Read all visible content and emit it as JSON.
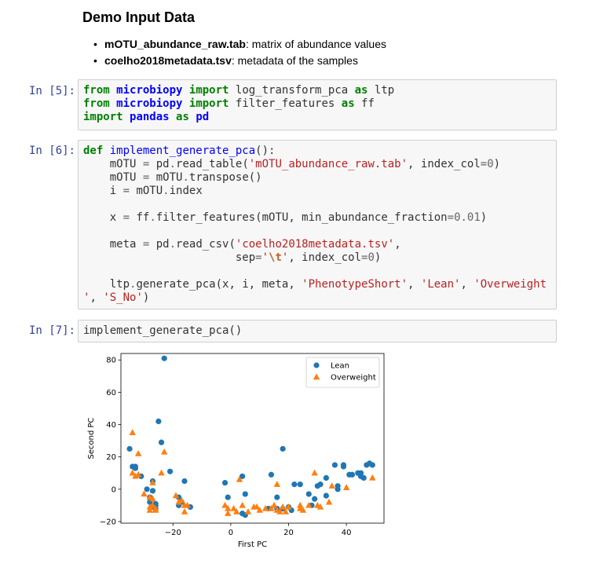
{
  "markdown": {
    "title": "Demo Input Data",
    "items": [
      {
        "name": "mOTU_abundance_raw.tab",
        "desc": ": matrix of abundance values"
      },
      {
        "name": "coelho2018metadata.tsv",
        "desc": ": metadata of the samples"
      }
    ]
  },
  "cells": [
    {
      "prompt": "In [5]:",
      "lines": [
        [
          [
            "kw",
            "from"
          ],
          [
            "t",
            " "
          ],
          [
            "mod",
            "microbiopy"
          ],
          [
            "t",
            " "
          ],
          [
            "kw",
            "import"
          ],
          [
            "t",
            " log_transform_pca "
          ],
          [
            "kw",
            "as"
          ],
          [
            "t",
            " ltp"
          ]
        ],
        [
          [
            "kw",
            "from"
          ],
          [
            "t",
            " "
          ],
          [
            "mod",
            "microbiopy"
          ],
          [
            "t",
            " "
          ],
          [
            "kw",
            "import"
          ],
          [
            "t",
            " filter_features "
          ],
          [
            "kw",
            "as"
          ],
          [
            "t",
            " ff"
          ]
        ],
        [
          [
            "kw",
            "import"
          ],
          [
            "t",
            " "
          ],
          [
            "mod",
            "pandas"
          ],
          [
            "t",
            " "
          ],
          [
            "kw",
            "as"
          ],
          [
            "t",
            " "
          ],
          [
            "mod",
            "pd"
          ]
        ]
      ]
    },
    {
      "prompt": "In [6]:",
      "lines": [
        [
          [
            "kw",
            "def"
          ],
          [
            "t",
            " "
          ],
          [
            "fn",
            "implement_generate_pca"
          ],
          [
            "t",
            "():"
          ]
        ],
        [
          [
            "t",
            "    mOTU "
          ],
          [
            "op",
            "="
          ],
          [
            "t",
            " pd"
          ],
          [
            "op",
            "."
          ],
          [
            "t",
            "read_table("
          ],
          [
            "str",
            "'mOTU_abundance_raw.tab'"
          ],
          [
            "t",
            ", index_col"
          ],
          [
            "op",
            "="
          ],
          [
            "num",
            "0"
          ],
          [
            "t",
            ")"
          ]
        ],
        [
          [
            "t",
            "    mOTU "
          ],
          [
            "op",
            "="
          ],
          [
            "t",
            " mOTU"
          ],
          [
            "op",
            "."
          ],
          [
            "t",
            "transpose()"
          ]
        ],
        [
          [
            "t",
            "    i "
          ],
          [
            "op",
            "="
          ],
          [
            "t",
            " mOTU"
          ],
          [
            "op",
            "."
          ],
          [
            "t",
            "index"
          ]
        ],
        [
          [
            "t",
            ""
          ]
        ],
        [
          [
            "t",
            "    x "
          ],
          [
            "op",
            "="
          ],
          [
            "t",
            " ff"
          ],
          [
            "op",
            "."
          ],
          [
            "t",
            "filter_features(mOTU, min_abundance_fraction"
          ],
          [
            "op",
            "="
          ],
          [
            "num",
            "0.01"
          ],
          [
            "t",
            ")"
          ]
        ],
        [
          [
            "t",
            ""
          ]
        ],
        [
          [
            "t",
            "    meta "
          ],
          [
            "op",
            "="
          ],
          [
            "t",
            " pd"
          ],
          [
            "op",
            "."
          ],
          [
            "t",
            "read_csv("
          ],
          [
            "str",
            "'coelho2018metadata.tsv'"
          ],
          [
            "t",
            ","
          ]
        ],
        [
          [
            "t",
            "                       sep"
          ],
          [
            "op",
            "="
          ],
          [
            "str",
            "'"
          ],
          [
            "esc",
            "\\t"
          ],
          [
            "str",
            "'"
          ],
          [
            "t",
            ", index_col"
          ],
          [
            "op",
            "="
          ],
          [
            "num",
            "0"
          ],
          [
            "t",
            ")"
          ]
        ],
        [
          [
            "t",
            ""
          ]
        ],
        [
          [
            "t",
            "    ltp"
          ],
          [
            "op",
            "."
          ],
          [
            "t",
            "generate_pca(x, i, meta, "
          ],
          [
            "str",
            "'PhenotypeShort'"
          ],
          [
            "t",
            ", "
          ],
          [
            "str",
            "'Lean'"
          ],
          [
            "t",
            ", "
          ],
          [
            "str",
            "'Overweight"
          ]
        ],
        [
          [
            "str",
            "'"
          ],
          [
            "t",
            ", "
          ],
          [
            "str",
            "'S_No'"
          ],
          [
            "t",
            ")"
          ]
        ]
      ]
    },
    {
      "prompt": "In [7]:",
      "lines": [
        [
          [
            "t",
            "implement_generate_pca()"
          ]
        ]
      ]
    }
  ],
  "chart_data": {
    "type": "scatter",
    "xlabel": "First PC",
    "ylabel": "Second PC",
    "xlim": [
      -38,
      53
    ],
    "ylim": [
      -21,
      84
    ],
    "xticks": [
      -20,
      0,
      20,
      40
    ],
    "yticks": [
      -20,
      0,
      20,
      40,
      60,
      80
    ],
    "legend_position": "top-right",
    "grid": false,
    "series": [
      {
        "name": "Lean",
        "marker": "circle",
        "color": "#1f77b4",
        "points": [
          [
            -23,
            81
          ],
          [
            -35,
            25
          ],
          [
            -25,
            42
          ],
          [
            -24,
            29
          ],
          [
            -34,
            14
          ],
          [
            -33,
            14
          ],
          [
            -33,
            13
          ],
          [
            -21,
            11
          ],
          [
            -31,
            8
          ],
          [
            -29,
            0
          ],
          [
            -27,
            -1
          ],
          [
            -28,
            -5
          ],
          [
            -28,
            -8
          ],
          [
            -26,
            -9
          ],
          [
            -26,
            -10
          ],
          [
            -27,
            -11
          ],
          [
            -26,
            -12
          ],
          [
            -27,
            5
          ],
          [
            -16,
            5
          ],
          [
            -18,
            -5
          ],
          [
            -17,
            -8
          ],
          [
            -18,
            -10
          ],
          [
            -14,
            -11
          ],
          [
            -2,
            4
          ],
          [
            -1,
            -5
          ],
          [
            4,
            8
          ],
          [
            5,
            -3
          ],
          [
            4,
            -15
          ],
          [
            5,
            -16
          ],
          [
            13,
            -12
          ],
          [
            14,
            9
          ],
          [
            16,
            -5
          ],
          [
            16,
            -12
          ],
          [
            18,
            25
          ],
          [
            18,
            -12
          ],
          [
            20,
            -11
          ],
          [
            21,
            -13
          ],
          [
            22,
            3
          ],
          [
            24,
            3
          ],
          [
            27,
            -3
          ],
          [
            28,
            -10
          ],
          [
            29,
            -6
          ],
          [
            30,
            2
          ],
          [
            31,
            3
          ],
          [
            33,
            7
          ],
          [
            33,
            -4
          ],
          [
            36,
            15
          ],
          [
            37,
            2
          ],
          [
            37,
            0
          ],
          [
            39,
            15
          ],
          [
            39,
            14
          ],
          [
            41,
            9
          ],
          [
            42,
            9
          ],
          [
            44,
            10
          ],
          [
            45,
            8
          ],
          [
            45,
            10
          ],
          [
            46,
            7
          ],
          [
            47,
            15
          ],
          [
            48,
            16
          ],
          [
            49,
            15
          ]
        ]
      },
      {
        "name": "Overweight",
        "marker": "triangle",
        "color": "#ff7f0e",
        "points": [
          [
            -34,
            35
          ],
          [
            -32,
            22
          ],
          [
            -23,
            23
          ],
          [
            -24,
            10
          ],
          [
            -34,
            10
          ],
          [
            -32,
            9
          ],
          [
            -33,
            8
          ],
          [
            -30,
            -3
          ],
          [
            -28,
            -5
          ],
          [
            -27,
            4
          ],
          [
            -27,
            -6
          ],
          [
            -27,
            -10
          ],
          [
            -28,
            -11
          ],
          [
            -28,
            -13
          ],
          [
            -26,
            -12
          ],
          [
            -26,
            -13
          ],
          [
            -19,
            -4
          ],
          [
            -18,
            -8
          ],
          [
            -16,
            -10
          ],
          [
            -15,
            -10
          ],
          [
            -16,
            -14
          ],
          [
            -17,
            -7
          ],
          [
            -2,
            -10
          ],
          [
            -1,
            -12
          ],
          [
            -1,
            -15
          ],
          [
            1,
            -12
          ],
          [
            2,
            -14
          ],
          [
            3,
            6
          ],
          [
            4,
            -10
          ],
          [
            6,
            -14
          ],
          [
            8,
            -11
          ],
          [
            9,
            -11
          ],
          [
            10,
            -13
          ],
          [
            12,
            -12
          ],
          [
            14,
            -12
          ],
          [
            15,
            -10
          ],
          [
            16,
            -13
          ],
          [
            16,
            3
          ],
          [
            17,
            -14
          ],
          [
            18,
            -11
          ],
          [
            19,
            -14
          ],
          [
            20,
            -11
          ],
          [
            24,
            -10
          ],
          [
            24,
            -12
          ],
          [
            25,
            -13
          ],
          [
            27,
            -10
          ],
          [
            29,
            10
          ],
          [
            30,
            -10
          ],
          [
            31,
            -11
          ],
          [
            34,
            -8
          ],
          [
            35,
            2
          ],
          [
            40,
            1
          ],
          [
            49,
            7
          ]
        ]
      }
    ]
  }
}
